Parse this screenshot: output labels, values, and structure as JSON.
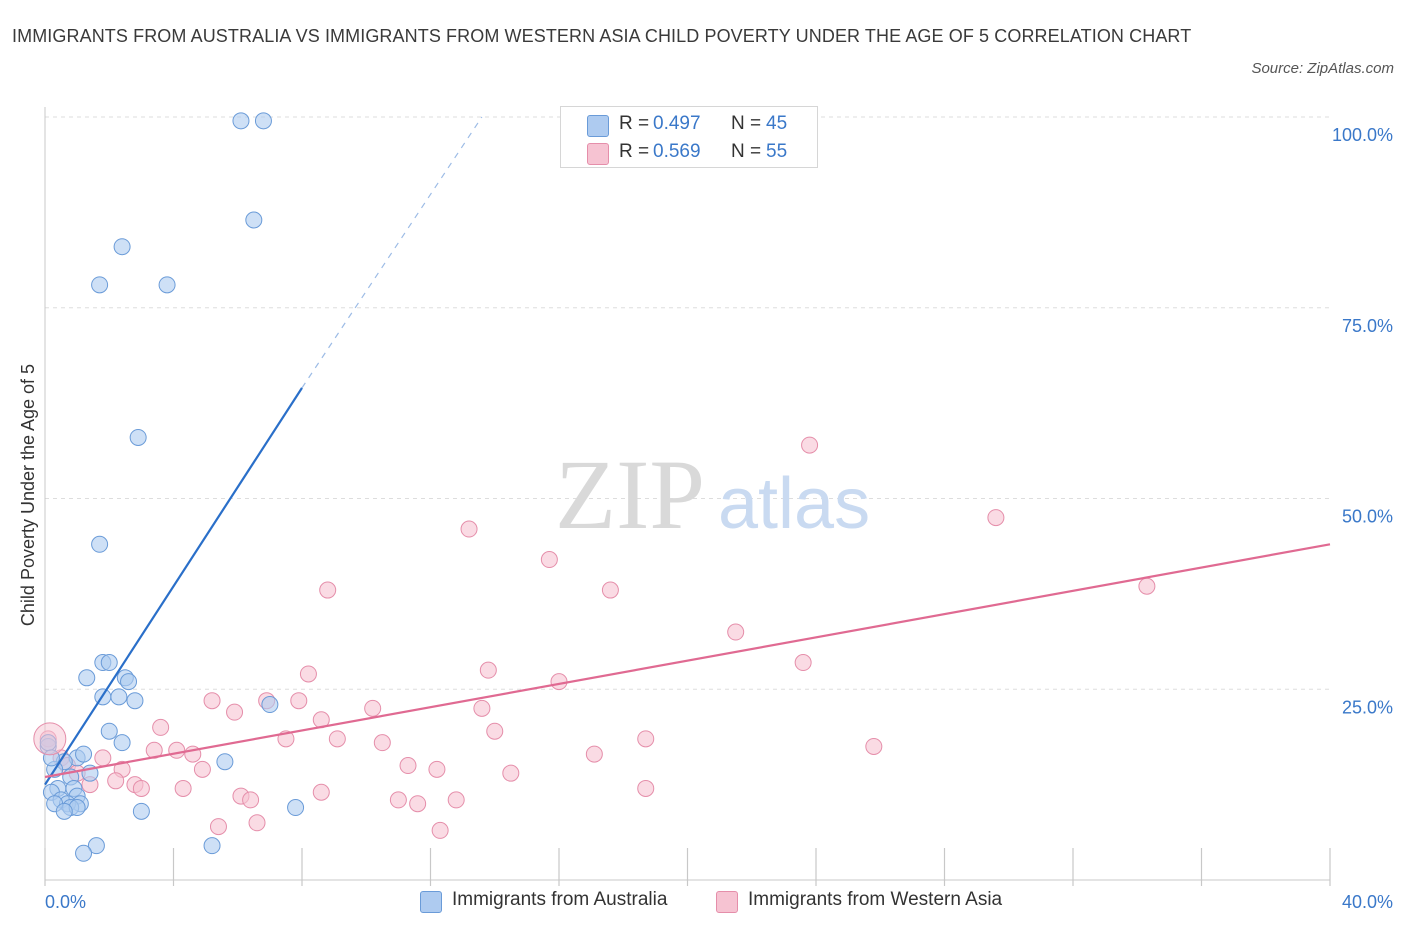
{
  "title": "IMMIGRANTS FROM AUSTRALIA VS IMMIGRANTS FROM WESTERN ASIA CHILD POVERTY UNDER THE AGE OF 5 CORRELATION CHART",
  "source": "Source: ZipAtlas.com",
  "watermark": {
    "zip": "ZIP",
    "atlas": "atlas"
  },
  "legend": {
    "r_label": "R =",
    "n_label": "N =",
    "series": [
      {
        "r": "0.497",
        "n": "45"
      },
      {
        "r": "0.569",
        "n": "55"
      }
    ]
  },
  "colors": {
    "australia_fill": "#aecbf0",
    "australia_stroke": "#6a9bd8",
    "australia_line": "#2a6fc9",
    "wasia_fill": "#f6c3d2",
    "wasia_stroke": "#e58eaa",
    "wasia_line": "#e06a92",
    "grid": "#dddddd",
    "tick_label": "#3a78c9"
  },
  "chart_data": {
    "type": "scatter",
    "ylabel": "Child Poverty Under the Age of 5",
    "xlim": [
      0,
      40
    ],
    "ylim": [
      0,
      100
    ],
    "x_ticks": [
      {
        "value": 0,
        "label": "0.0%"
      },
      {
        "value": 40,
        "label": "40.0%"
      }
    ],
    "y_ticks": [
      {
        "value": 25,
        "label": "25.0%"
      },
      {
        "value": 50,
        "label": "50.0%"
      },
      {
        "value": 75,
        "label": "75.0%"
      },
      {
        "value": 100,
        "label": "100.0%"
      }
    ],
    "grid": true,
    "series": [
      {
        "name": "Immigrants from Australia",
        "trend": {
          "x0": 0.0,
          "y0": 12.5,
          "x_solid_end": 8.0,
          "y_solid_end": 64.5,
          "x_dash_end": 13.6,
          "y_dash_end": 100.0
        },
        "points": [
          [
            6.1,
            99.5
          ],
          [
            6.8,
            99.5
          ],
          [
            6.5,
            86.5
          ],
          [
            2.4,
            83.0
          ],
          [
            1.7,
            78.0
          ],
          [
            3.8,
            78.0
          ],
          [
            2.9,
            58.0
          ],
          [
            1.7,
            44.0
          ],
          [
            1.8,
            28.5
          ],
          [
            2.0,
            28.5
          ],
          [
            1.3,
            26.5
          ],
          [
            2.5,
            26.5
          ],
          [
            2.6,
            26.0
          ],
          [
            1.8,
            24.0
          ],
          [
            2.3,
            24.0
          ],
          [
            2.8,
            23.5
          ],
          [
            7.0,
            23.0
          ],
          [
            2.0,
            19.5
          ],
          [
            2.4,
            18.0
          ],
          [
            0.1,
            17.5
          ],
          [
            1.0,
            16.0
          ],
          [
            1.2,
            16.5
          ],
          [
            0.6,
            15.5
          ],
          [
            5.6,
            15.5
          ],
          [
            0.3,
            14.5
          ],
          [
            1.4,
            14.0
          ],
          [
            0.8,
            13.5
          ],
          [
            0.4,
            12.0
          ],
          [
            0.9,
            12.0
          ],
          [
            0.2,
            11.5
          ],
          [
            1.0,
            11.0
          ],
          [
            0.5,
            10.5
          ],
          [
            1.1,
            10.0
          ],
          [
            0.7,
            10.0
          ],
          [
            0.3,
            10.0
          ],
          [
            0.8,
            9.5
          ],
          [
            1.0,
            9.5
          ],
          [
            0.6,
            9.0
          ],
          [
            3.0,
            9.0
          ],
          [
            7.8,
            9.5
          ],
          [
            1.6,
            4.5
          ],
          [
            5.2,
            4.5
          ],
          [
            1.2,
            3.5
          ],
          [
            0.1,
            18.0
          ],
          [
            0.2,
            16.0
          ]
        ]
      },
      {
        "name": "Immigrants from Western Asia",
        "trend": {
          "x0": 0.0,
          "y0": 13.5,
          "x1": 40.0,
          "y1": 44.0
        },
        "points": [
          [
            23.8,
            57.0
          ],
          [
            29.6,
            47.5
          ],
          [
            13.2,
            46.0
          ],
          [
            15.7,
            42.0
          ],
          [
            8.8,
            38.0
          ],
          [
            17.6,
            38.0
          ],
          [
            34.3,
            38.5
          ],
          [
            21.5,
            32.5
          ],
          [
            23.6,
            28.5
          ],
          [
            13.8,
            27.5
          ],
          [
            8.2,
            27.0
          ],
          [
            16.0,
            26.0
          ],
          [
            6.9,
            23.5
          ],
          [
            5.2,
            23.5
          ],
          [
            7.9,
            23.5
          ],
          [
            10.2,
            22.5
          ],
          [
            5.9,
            22.0
          ],
          [
            13.6,
            22.5
          ],
          [
            8.6,
            21.0
          ],
          [
            3.6,
            20.0
          ],
          [
            14.0,
            19.5
          ],
          [
            7.5,
            18.5
          ],
          [
            9.1,
            18.5
          ],
          [
            10.5,
            18.0
          ],
          [
            18.7,
            18.5
          ],
          [
            25.8,
            17.5
          ],
          [
            3.4,
            17.0
          ],
          [
            4.1,
            17.0
          ],
          [
            4.6,
            16.5
          ],
          [
            17.1,
            16.5
          ],
          [
            1.8,
            16.0
          ],
          [
            0.1,
            18.5
          ],
          [
            0.5,
            16.0
          ],
          [
            11.3,
            15.0
          ],
          [
            12.2,
            14.5
          ],
          [
            4.9,
            14.5
          ],
          [
            2.4,
            14.5
          ],
          [
            14.5,
            14.0
          ],
          [
            2.2,
            13.0
          ],
          [
            2.8,
            12.5
          ],
          [
            3.0,
            12.0
          ],
          [
            4.3,
            12.0
          ],
          [
            1.4,
            12.5
          ],
          [
            8.6,
            11.5
          ],
          [
            6.1,
            11.0
          ],
          [
            6.4,
            10.5
          ],
          [
            12.8,
            10.5
          ],
          [
            11.0,
            10.5
          ],
          [
            11.6,
            10.0
          ],
          [
            18.7,
            12.0
          ],
          [
            5.4,
            7.0
          ],
          [
            6.6,
            7.5
          ],
          [
            12.3,
            6.5
          ],
          [
            0.7,
            15.0
          ],
          [
            1.0,
            14.0
          ]
        ]
      }
    ]
  }
}
